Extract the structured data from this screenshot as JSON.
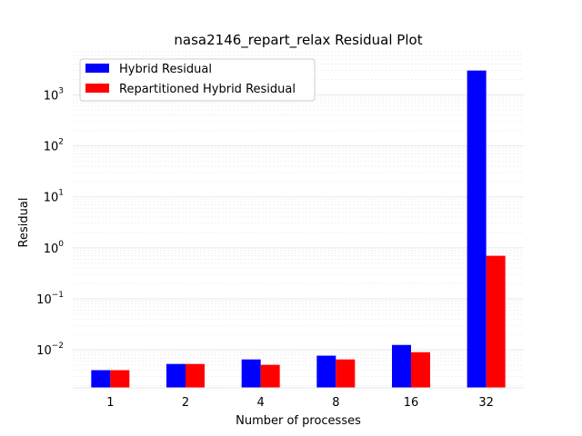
{
  "chart_data": {
    "type": "bar",
    "title": "nasa2146_repart_relax Residual Plot",
    "xlabel": "Number of processes",
    "ylabel": "Residual",
    "yscale": "log",
    "ylim": [
      0.0018,
      7000
    ],
    "y_ticks": [
      {
        "value": 0.01,
        "base": "10",
        "exp": "−2"
      },
      {
        "value": 0.1,
        "base": "10",
        "exp": "−1"
      },
      {
        "value": 1,
        "base": "10",
        "exp": "0"
      },
      {
        "value": 10,
        "base": "10",
        "exp": "1"
      },
      {
        "value": 100,
        "base": "10",
        "exp": "2"
      },
      {
        "value": 1000,
        "base": "10",
        "exp": "3"
      }
    ],
    "categories": [
      "1",
      "2",
      "4",
      "8",
      "16",
      "32"
    ],
    "series": [
      {
        "name": "Hybrid Residual",
        "color": "#0000ff",
        "values": [
          0.004,
          0.0053,
          0.0065,
          0.0077,
          0.0125,
          3000
        ]
      },
      {
        "name": "Repartitioned Hybrid Residual",
        "color": "#ff0000",
        "values": [
          0.004,
          0.0053,
          0.0051,
          0.0065,
          0.009,
          0.7
        ]
      }
    ],
    "grid": true,
    "legend_position": "top-left"
  }
}
